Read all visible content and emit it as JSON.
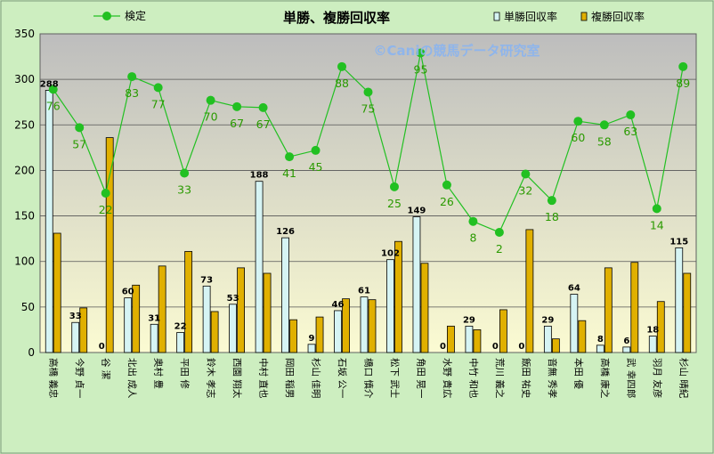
{
  "chart_data": {
    "type": "bar",
    "title": "単勝、複勝回収率",
    "watermark": "©Caniの競馬データ研究室",
    "ylim": [
      0,
      350
    ],
    "yticks": [
      0,
      50,
      100,
      150,
      200,
      250,
      300,
      350
    ],
    "grid": true,
    "legend_position": "top",
    "categories": [
      "高橋 義忠",
      "今野 貞一",
      "谷 潔",
      "北出 成人",
      "奥村 豊",
      "平田 修",
      "鈴木 孝志",
      "西園 翔太",
      "中村 直也",
      "岡田 稲男",
      "杉山 佳明",
      "石坂 公一",
      "橋口 慎介",
      "松下 武士",
      "角田 晃一",
      "水野 貴広",
      "中竹 和也",
      "荒川 義之",
      "飯田 祐史",
      "音無 秀孝",
      "本田 優",
      "高橋 康之",
      "武 幸四郎",
      "羽月 友彦",
      "杉山 晴紀"
    ],
    "series": [
      {
        "name": "単勝回収率",
        "kind": "bar",
        "color": "#d6f4f4",
        "values": [
          288,
          33,
          0,
          60,
          31,
          22,
          73,
          53,
          188,
          126,
          9,
          46,
          61,
          102,
          149,
          0,
          29,
          0,
          0,
          29,
          64,
          8,
          6,
          18,
          115
        ],
        "labels": [
          "288",
          "33",
          "0",
          "60",
          "31",
          "22",
          "73",
          "53",
          "188",
          "126",
          "9",
          "46",
          "61",
          "102",
          "149",
          "0",
          "29",
          "0",
          "0",
          "29",
          "64",
          "8",
          "6",
          "18",
          "115"
        ]
      },
      {
        "name": "複勝回収率",
        "kind": "bar",
        "color": "#e0b000",
        "values": [
          131,
          49,
          236,
          74,
          95,
          111,
          45,
          93,
          87,
          36,
          39,
          59,
          58,
          122,
          98,
          29,
          25,
          47,
          135,
          15,
          35,
          93,
          99,
          56,
          87
        ]
      },
      {
        "name": "検定",
        "kind": "line",
        "color": "#22c022",
        "values": [
          289,
          247,
          175,
          303,
          291,
          197,
          277,
          270,
          269,
          215,
          222,
          314,
          286,
          182,
          329,
          184,
          144,
          132,
          196,
          167,
          254,
          250,
          261,
          158,
          314
        ],
        "labels": [
          "76",
          "57",
          "22",
          "83",
          "77",
          "33",
          "70",
          "67",
          "67",
          "41",
          "45",
          "88",
          "75",
          "25",
          "95",
          "26",
          "8",
          "2",
          "32",
          "18",
          "60",
          "58",
          "63",
          "14",
          "89"
        ]
      }
    ]
  }
}
